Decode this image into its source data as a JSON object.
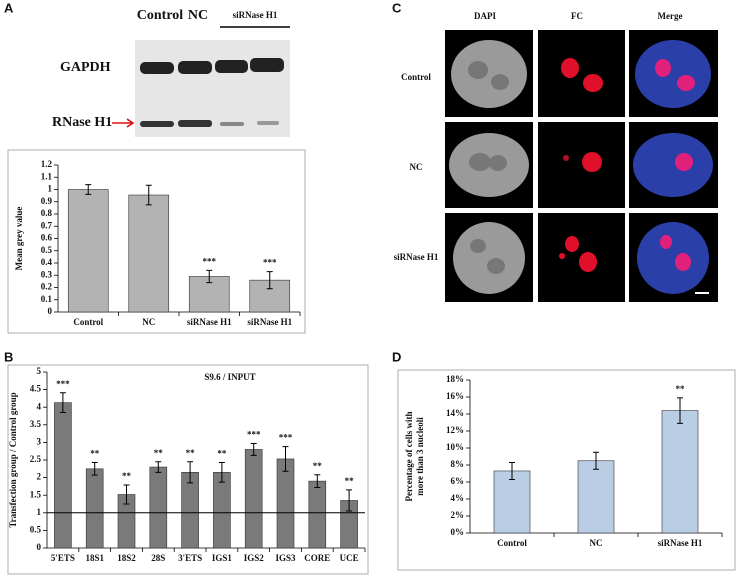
{
  "panel_labels": [
    "A",
    "B",
    "C",
    "D"
  ],
  "blot": {
    "lanes": [
      "Control",
      "NC",
      "siRNase H1"
    ],
    "bands": [
      "GAPDH",
      "RNase H1"
    ]
  },
  "microscopy": {
    "columns": [
      "DAPI",
      "FC",
      "Merge"
    ],
    "rows": [
      "Control",
      "NC",
      "siRNase H1"
    ]
  },
  "chart_data": [
    {
      "type": "bar",
      "ylabel": "Mean grey value",
      "color": "#b3b3b3",
      "categories": [
        "Control",
        "NC",
        "siRNase H1",
        "siRNase H1"
      ],
      "values": [
        1.0,
        0.955,
        0.29,
        0.26
      ],
      "errors": [
        0.04,
        0.08,
        0.05,
        0.07
      ],
      "significance": [
        null,
        null,
        "***",
        "***"
      ],
      "ylim": [
        0,
        1.2
      ],
      "yticks": [
        0,
        0.1,
        0.2,
        0.3,
        0.4,
        0.5,
        0.6,
        0.7,
        0.8,
        0.9,
        1,
        1.1,
        1.2
      ]
    },
    {
      "type": "bar",
      "title": "S9.6 / INPUT",
      "ylabel": "Transfection group / Control group",
      "color": "#7a7a7a",
      "categories": [
        "5'ETS",
        "18S1",
        "18S2",
        "28S",
        "3'ETS",
        "IGS1",
        "IGS2",
        "IGS3",
        "CORE",
        "UCE"
      ],
      "values": [
        4.13,
        2.25,
        1.52,
        2.3,
        2.15,
        2.15,
        2.8,
        2.53,
        1.9,
        1.35
      ],
      "errors": [
        0.28,
        0.18,
        0.27,
        0.15,
        0.3,
        0.28,
        0.17,
        0.35,
        0.18,
        0.3
      ],
      "significance": [
        "***",
        "**",
        "**",
        "**",
        "**",
        "**",
        "***",
        "***",
        "**",
        "**"
      ],
      "hline": 1,
      "ylim": [
        0,
        5
      ],
      "yticks": [
        0,
        0.5,
        1,
        1.5,
        2,
        2.5,
        3,
        3.5,
        4,
        4.5,
        5
      ]
    },
    {
      "type": "bar",
      "ylabel": [
        "Percentage of cells with",
        "more than 3 nucleoli"
      ],
      "color": "#b9cde5",
      "categories": [
        "Control",
        "NC",
        "siRNase H1"
      ],
      "values": [
        7.3,
        8.5,
        14.4
      ],
      "errors": [
        1.0,
        1.0,
        1.5
      ],
      "significance": [
        null,
        null,
        "**"
      ],
      "ylim": [
        0,
        18
      ],
      "yticks": [
        {
          "value": 0,
          "label": "0%"
        },
        {
          "value": 2,
          "label": "2%"
        },
        {
          "value": 4,
          "label": "4%"
        },
        {
          "value": 6,
          "label": "6%"
        },
        {
          "value": 8,
          "label": "8%"
        },
        {
          "value": 10,
          "label": "10%"
        },
        {
          "value": 12,
          "label": "12%"
        },
        {
          "value": 14,
          "label": "14%"
        },
        {
          "value": 16,
          "label": "16%"
        },
        {
          "value": 18,
          "label": "18%"
        }
      ]
    }
  ]
}
